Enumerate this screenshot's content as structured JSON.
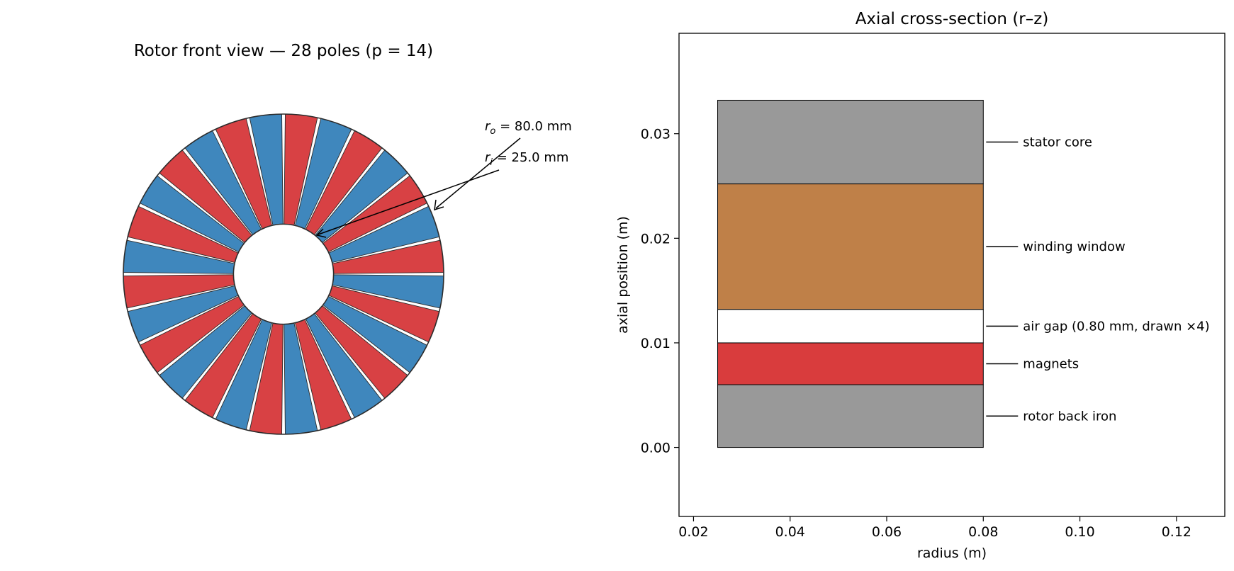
{
  "rotor": {
    "title": "Rotor front view — 28 poles (p = 14)",
    "poles": 28,
    "pole_pairs": 14,
    "outer_radius_mm": 80.0,
    "inner_radius_mm": 25.0,
    "outer_label_var": "r",
    "outer_label_sub": "o",
    "outer_label_value": " = 80.0 mm",
    "inner_label_var": "r",
    "inner_label_sub": "i",
    "inner_label_value": " = 25.0 mm",
    "colors": {
      "north": "#d84144",
      "south": "#3f87bd",
      "edge": "#2c2c2c"
    }
  },
  "chart_data": [
    {
      "type": "pie",
      "title": "Rotor front view — 28 poles (p = 14)",
      "slices": 28,
      "values": [
        1,
        1,
        1,
        1,
        1,
        1,
        1,
        1,
        1,
        1,
        1,
        1,
        1,
        1,
        1,
        1,
        1,
        1,
        1,
        1,
        1,
        1,
        1,
        1,
        1,
        1,
        1,
        1
      ],
      "inner_radius_mm": 25.0,
      "outer_radius_mm": 80.0,
      "alternating_colors": [
        "#d84144",
        "#3f87bd"
      ]
    },
    {
      "type": "bar",
      "orientation": "stacked-rectangles",
      "title": "Axial cross-section (r–z)",
      "xlabel": "radius (m)",
      "ylabel": "axial position (m)",
      "xlim": [
        0.017,
        0.13
      ],
      "ylim": [
        -0.0066,
        0.0396
      ],
      "xticks": [
        "0.02",
        "0.04",
        "0.06",
        "0.08",
        "0.10",
        "0.12"
      ],
      "xtick_values": [
        0.02,
        0.04,
        0.06,
        0.08,
        0.1,
        0.12
      ],
      "yticks": [
        "0.00",
        "0.01",
        "0.02",
        "0.03"
      ],
      "ytick_values": [
        0.0,
        0.01,
        0.02,
        0.03
      ],
      "grid": false,
      "series": [
        {
          "name": "rotor back iron",
          "r0": 0.025,
          "r1": 0.08,
          "z0": 0.0,
          "z1": 0.006,
          "color": "#999999",
          "label_z": 0.003
        },
        {
          "name": "magnets",
          "r0": 0.025,
          "r1": 0.08,
          "z0": 0.006,
          "z1": 0.01,
          "color": "#d93c3d",
          "label_z": 0.008
        },
        {
          "name": "air gap (0.80 mm, drawn ×4)",
          "r0": 0.025,
          "r1": 0.08,
          "z0": 0.01,
          "z1": 0.0132,
          "color": "#ffffff",
          "label_z": 0.0116
        },
        {
          "name": "winding window",
          "r0": 0.025,
          "r1": 0.08,
          "z0": 0.0132,
          "z1": 0.0252,
          "color": "#bf8048",
          "label_z": 0.0192
        },
        {
          "name": "stator core",
          "r0": 0.025,
          "r1": 0.08,
          "z0": 0.0252,
          "z1": 0.0332,
          "color": "#999999",
          "label_z": 0.0292
        }
      ]
    }
  ]
}
